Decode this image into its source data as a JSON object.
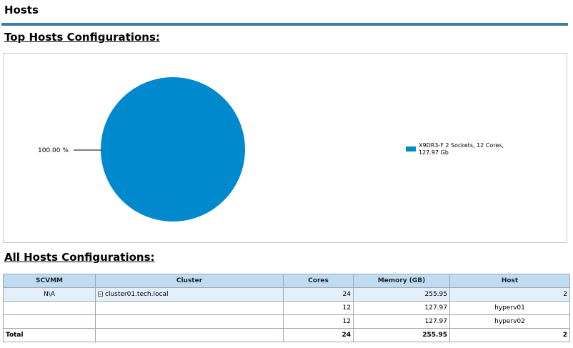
{
  "page": {
    "title": "Hosts",
    "section_top": "Top Hosts Configurations:",
    "section_all": "All Hosts Configurations:"
  },
  "colors": {
    "accent": "#3b7ea8",
    "slice": "#0089cc",
    "header_bg": "#bfdcf3",
    "selected_row": "#e3f0fb"
  },
  "chart_data": {
    "type": "pie",
    "categories": [
      "X9DR3-F 2 Sockets, 12 Cores, 127.97 Gb"
    ],
    "values": [
      100.0
    ],
    "value_labels": [
      "100.00 %"
    ],
    "legend": [
      "X9DR3-F 2 Sockets, 12 Cores,",
      "127.97 Gb"
    ],
    "legend_position": "right"
  },
  "table": {
    "columns": [
      "SCVMM",
      "Cluster",
      "Cores",
      "Memory (GB)",
      "Host"
    ],
    "rows": [
      {
        "scvmm": "N\\A",
        "cluster": "cluster01.tech.local",
        "cores": "24",
        "memory": "255.95",
        "host": "2",
        "expander": "collapse-icon"
      },
      {
        "scvmm": "",
        "cluster": "",
        "cores": "12",
        "memory": "127.97",
        "host": "hyperv01"
      },
      {
        "scvmm": "",
        "cluster": "",
        "cores": "12",
        "memory": "127.97",
        "host": "hyperv02"
      }
    ],
    "total": {
      "label": "Total",
      "cores": "24",
      "memory": "255.95",
      "host": "2"
    }
  }
}
